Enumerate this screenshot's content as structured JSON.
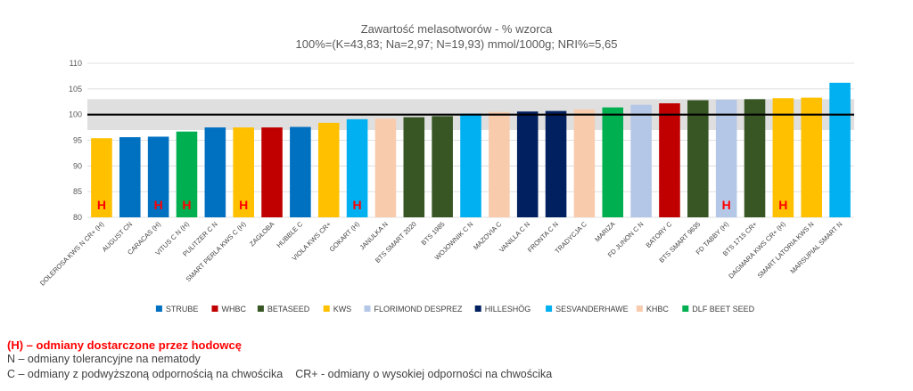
{
  "chart_data": {
    "type": "bar",
    "title": "Zawartość melasotworów - % wzorca",
    "subtitle": "100%=(K=43,83; Na=2,97; N=19,93) mmol/1000g; NRI%=5,65",
    "ylim": [
      80,
      110
    ],
    "yticks": [
      "80",
      "85",
      "90",
      "95",
      "100",
      "105",
      "110"
    ],
    "reference_line": 100,
    "shaded_band": [
      97,
      103
    ],
    "categories": [
      "DOLEROSA KWS N CR+ (H)",
      "AUGUST CN",
      "CARACAS (H)",
      "VITUS C N (H)",
      "PULITZER C N",
      "SMART PERLA KWS C (H)",
      "ZAGŁOBA",
      "HUBBLE C",
      "VIOLA KWS CR+",
      "GOKART (H)",
      "JANULKA N",
      "BTS SMART 2020",
      "BTS 1985",
      "WOJOWNIK C N",
      "MAZOVIA C",
      "VANILLA C N",
      "FRONTA C N",
      "TRADYCJA C",
      "MARIZA",
      "FD JUNON C N",
      "BATORY C",
      "BTS SMART 9635",
      "FD TABBY (H)",
      "BTS 1715 CR+",
      "DAGMARA KWS CR+ (H)",
      "SMART LATORIA KWS N",
      "MARSUPIAL SMART N"
    ],
    "values": [
      95.4,
      95.6,
      95.7,
      96.7,
      97.5,
      97.5,
      97.5,
      97.6,
      98.4,
      99.1,
      99.2,
      99.5,
      99.7,
      100.2,
      100.5,
      100.6,
      100.7,
      101.0,
      101.4,
      101.9,
      102.2,
      102.8,
      102.9,
      103.0,
      103.2,
      103.3,
      106.2
    ],
    "breeders": [
      "KWS",
      "STRUBE",
      "STRUBE",
      "DLF BEET SEED",
      "STRUBE",
      "KWS",
      "WHBC",
      "STRUBE",
      "KWS",
      "SESVANDERHAWE",
      "KHBC",
      "BETASEED",
      "BETASEED",
      "SESVANDERHAWE",
      "KHBC",
      "HILLESHÖG",
      "HILLESHÖG",
      "KHBC",
      "DLF BEET SEED",
      "FLORIMOND DESPREZ",
      "WHBC",
      "BETASEED",
      "FLORIMOND DESPREZ",
      "BETASEED",
      "KWS",
      "KWS",
      "SESVANDERHAWE"
    ],
    "h_marker_text": "H",
    "h_markers": [
      true,
      false,
      true,
      true,
      false,
      true,
      false,
      false,
      false,
      true,
      false,
      false,
      false,
      false,
      false,
      false,
      false,
      false,
      false,
      false,
      false,
      false,
      true,
      false,
      true,
      false,
      false
    ],
    "legend": [
      {
        "name": "STRUBE",
        "color": "#0070c0"
      },
      {
        "name": "WHBC",
        "color": "#c00000"
      },
      {
        "name": "BETASEED",
        "color": "#375623"
      },
      {
        "name": "KWS",
        "color": "#ffc000"
      },
      {
        "name": "FLORIMOND DESPREZ",
        "color": "#b4c7e7"
      },
      {
        "name": "HILLESHÖG",
        "color": "#002060"
      },
      {
        "name": "SESVANDERHAWE",
        "color": "#00b0f0"
      },
      {
        "name": "KHBC",
        "color": "#f8cbad"
      },
      {
        "name": "DLF BEET SEED",
        "color": "#00b050"
      }
    ]
  },
  "notes": {
    "line1": "(H) – odmiany dostarczone przez hodowcę",
    "line2": "N – odmiany tolerancyjne na nematody",
    "line3a": "C – odmiany z podwyższoną odpornością na chwościka",
    "line3b": "CR+ - odmiany o wysokiej odporności na chwościka"
  }
}
